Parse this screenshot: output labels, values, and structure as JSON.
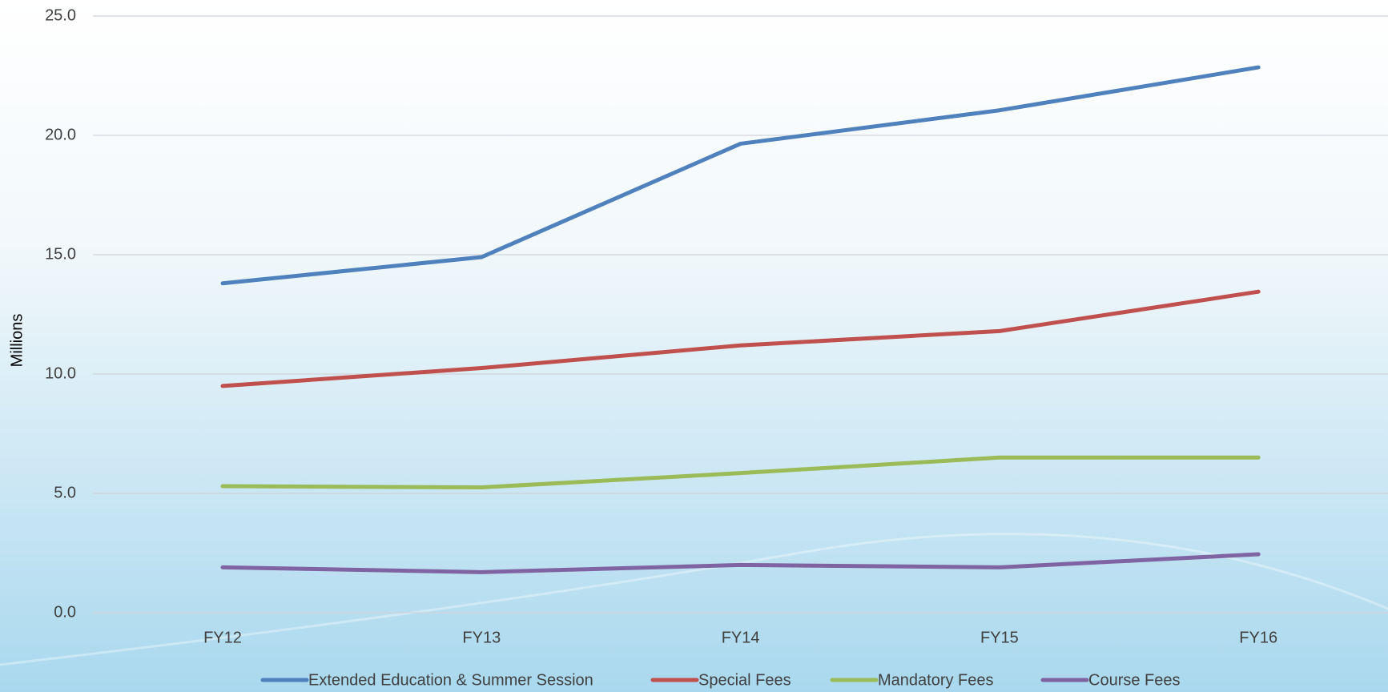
{
  "chart_data": {
    "type": "line",
    "y_label": "Millions",
    "categories": [
      "FY12",
      "FY13",
      "FY14",
      "FY15",
      "FY16"
    ],
    "series": [
      {
        "name": "Extended Education & Summer Session",
        "color": "#4f81bd",
        "values": [
          13.8,
          14.9,
          19.65,
          21.05,
          22.85
        ]
      },
      {
        "name": "Special Fees",
        "color": "#c0504d",
        "values": [
          9.5,
          10.25,
          11.2,
          11.8,
          13.45
        ]
      },
      {
        "name": "Mandatory Fees",
        "color": "#9bbb59",
        "values": [
          5.3,
          5.25,
          5.85,
          6.5,
          6.5
        ]
      },
      {
        "name": "Course Fees",
        "color": "#8064a2",
        "values": [
          1.9,
          1.7,
          2.0,
          1.9,
          2.45
        ]
      }
    ],
    "ylim": [
      0,
      25
    ],
    "yticks": [
      {
        "value": 0,
        "label": "0.0"
      },
      {
        "value": 5,
        "label": "5.0"
      },
      {
        "value": 10,
        "label": "10.0"
      },
      {
        "value": 15,
        "label": "15.0"
      },
      {
        "value": 20,
        "label": "20.0"
      },
      {
        "value": 25,
        "label": "25.0"
      }
    ],
    "grid": true,
    "legend": "bottom"
  }
}
